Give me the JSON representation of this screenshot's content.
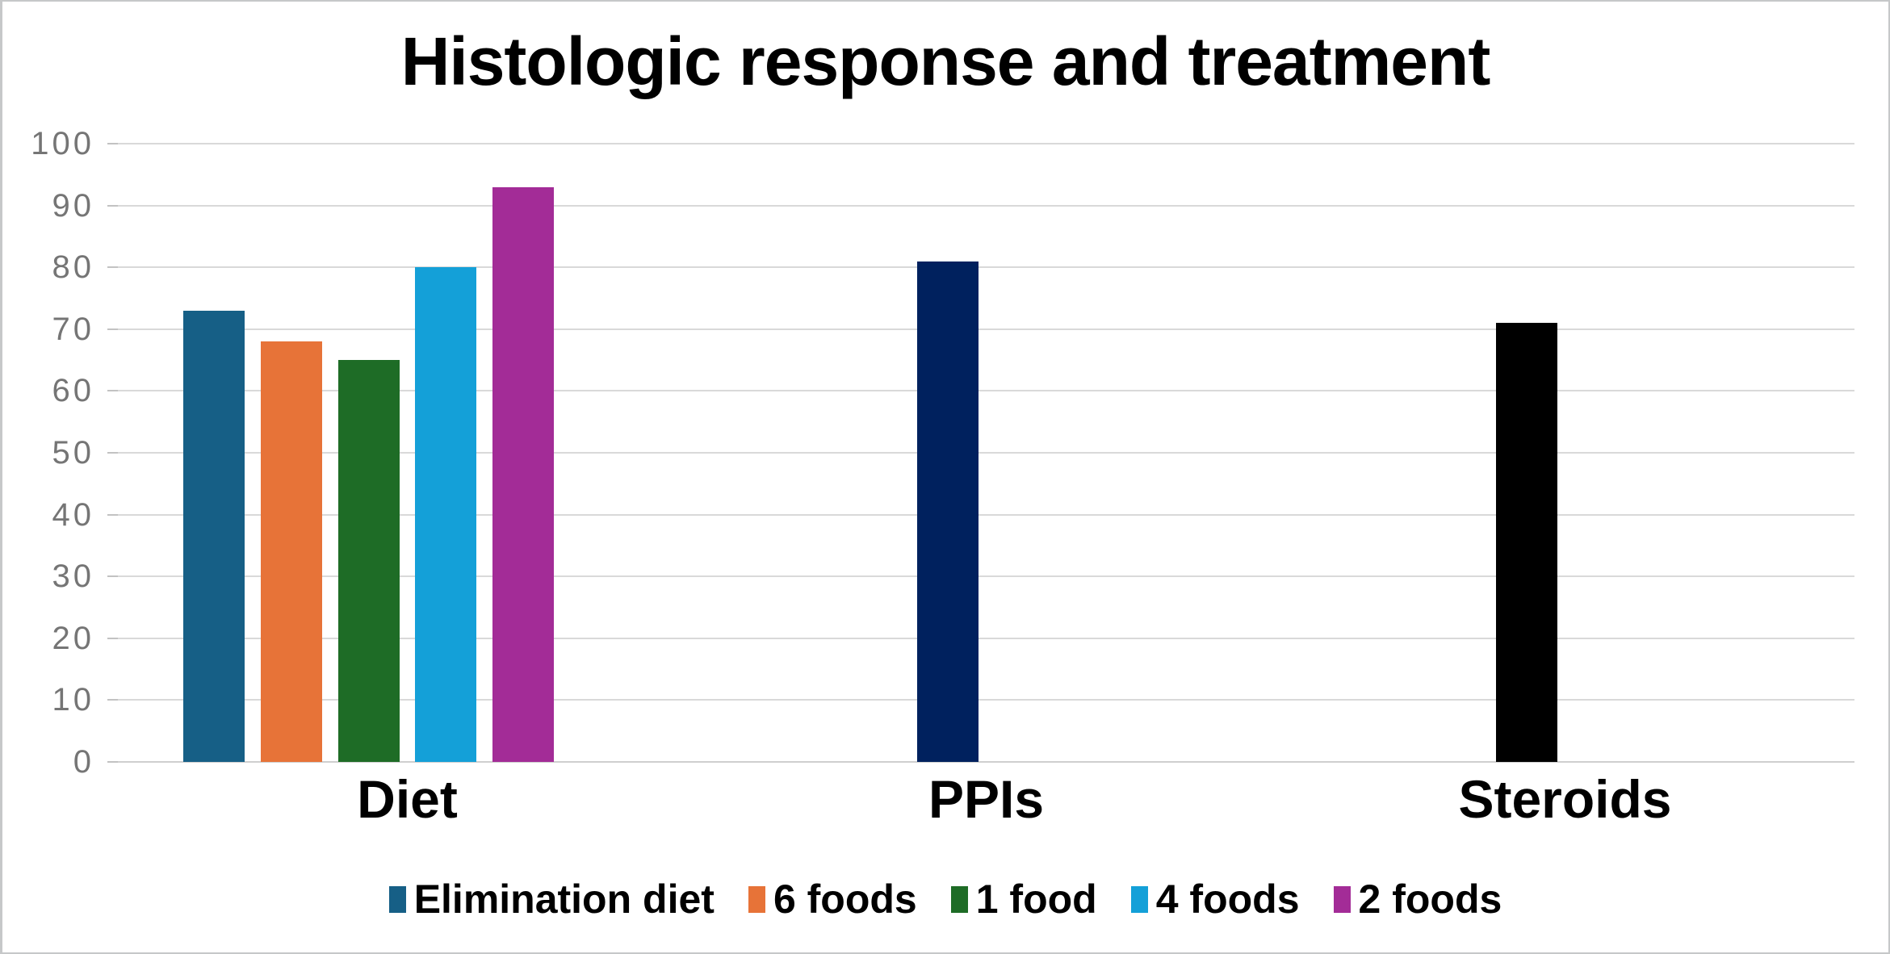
{
  "chart_data": {
    "type": "bar",
    "title": "Histologic response and treatment",
    "xlabel": "",
    "ylabel": "",
    "ylim": [
      0,
      100
    ],
    "yticks": [
      0,
      10,
      20,
      30,
      40,
      50,
      60,
      70,
      80,
      90,
      100
    ],
    "grid": true,
    "legend_position": "bottom",
    "categories": [
      "Diet",
      "PPIs",
      "Steroids"
    ],
    "legend": [
      {
        "label": "Elimination diet",
        "color": "#165f86"
      },
      {
        "label": "6 foods",
        "color": "#e77338"
      },
      {
        "label": "1 food",
        "color": "#1e6c26"
      },
      {
        "label": "4 foods",
        "color": "#14a0d8"
      },
      {
        "label": "2 foods",
        "color": "#a32c97"
      }
    ],
    "bars": [
      {
        "category": "Diet",
        "series": "Elimination diet",
        "value": 73,
        "color": "#165f86"
      },
      {
        "category": "Diet",
        "series": "6 foods",
        "value": 68,
        "color": "#e77338"
      },
      {
        "category": "Diet",
        "series": "1 food",
        "value": 65,
        "color": "#1e6c26"
      },
      {
        "category": "Diet",
        "series": "4 foods",
        "value": 80,
        "color": "#14a0d8"
      },
      {
        "category": "Diet",
        "series": "2 foods",
        "value": 93,
        "color": "#a32c97"
      },
      {
        "category": "PPIs",
        "series": "PPIs",
        "value": 81,
        "color": "#00215e"
      },
      {
        "category": "Steroids",
        "series": "Steroids",
        "value": 71,
        "color": "#000000"
      }
    ]
  },
  "colors": {
    "gridline": "#d9d9d9",
    "baseline": "#cfcfcf",
    "tick_label": "#757575",
    "frame_border": "#c6c8c9"
  }
}
